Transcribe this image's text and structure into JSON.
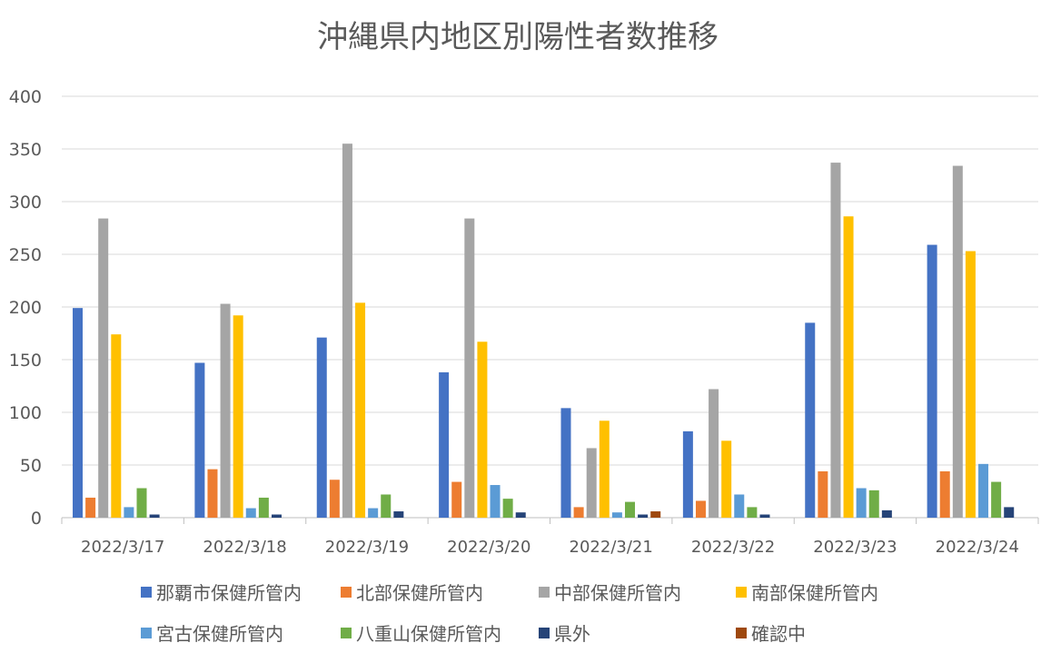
{
  "chart_data": {
    "type": "bar",
    "title": "沖縄県内地区別陽性者数推移",
    "xlabel": "",
    "ylabel": "",
    "ylim": [
      0,
      400
    ],
    "yticks": [
      0,
      50,
      100,
      150,
      200,
      250,
      300,
      350,
      400
    ],
    "grid": true,
    "legend_position": "bottom",
    "categories": [
      "2022/3/17",
      "2022/3/18",
      "2022/3/19",
      "2022/3/20",
      "2022/3/21",
      "2022/3/22",
      "2022/3/23",
      "2022/3/24"
    ],
    "series": [
      {
        "name": "那覇市保健所管内",
        "color": "#4472C4",
        "values": [
          199,
          147,
          171,
          138,
          104,
          82,
          185,
          259
        ]
      },
      {
        "name": "北部保健所管内",
        "color": "#ED7D31",
        "values": [
          19,
          46,
          36,
          34,
          10,
          16,
          44,
          44
        ]
      },
      {
        "name": "中部保健所管内",
        "color": "#A5A5A5",
        "values": [
          284,
          203,
          355,
          284,
          66,
          122,
          337,
          334
        ]
      },
      {
        "name": "南部保健所管内",
        "color": "#FFC000",
        "values": [
          174,
          192,
          204,
          167,
          92,
          73,
          286,
          253
        ]
      },
      {
        "name": "宮古保健所管内",
        "color": "#5B9BD5",
        "values": [
          10,
          9,
          9,
          31,
          5,
          22,
          28,
          51
        ]
      },
      {
        "name": "八重山保健所管内",
        "color": "#70AD47",
        "values": [
          28,
          19,
          22,
          18,
          15,
          10,
          26,
          34
        ]
      },
      {
        "name": "県外",
        "color": "#264478",
        "values": [
          3,
          3,
          6,
          5,
          3,
          3,
          7,
          10
        ]
      },
      {
        "name": "確認中",
        "color": "#9E480E",
        "values": [
          0,
          0,
          0,
          0,
          6,
          0,
          0,
          0
        ]
      }
    ]
  }
}
